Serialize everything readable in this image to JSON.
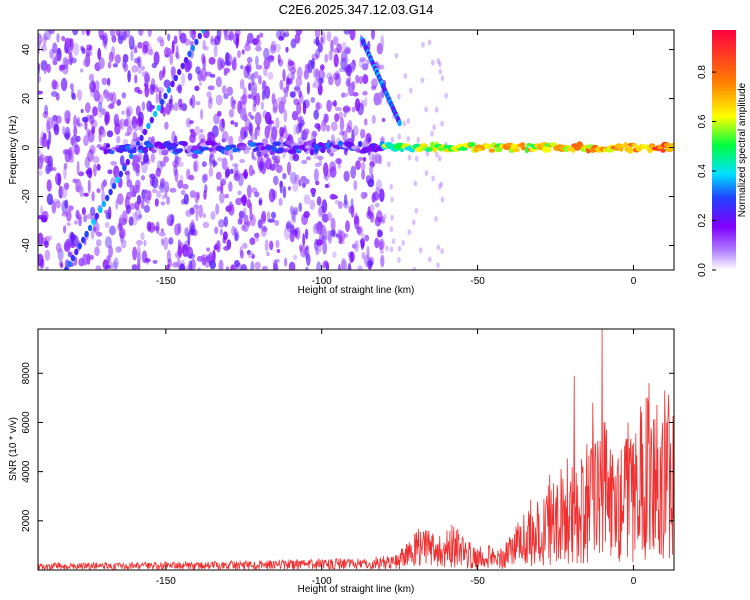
{
  "chart_data": [
    {
      "type": "heatmap",
      "title": "C2E6.2025.347.12.03.G14",
      "xlabel": "Height of straight line (km)",
      "ylabel": "Frequency (Hz)",
      "xlim": [
        -191,
        13
      ],
      "ylim": [
        -50,
        48
      ],
      "x_ticks": [
        -150,
        -100,
        -50,
        0
      ],
      "x_tick_labels": [
        "-150",
        "-100",
        "-50",
        "0"
      ],
      "y_ticks": [
        -40,
        -20,
        0,
        20,
        40
      ],
      "y_tick_labels": [
        "-40",
        "-20",
        "0",
        "20",
        "40"
      ],
      "colorbar": {
        "label": "Normalized spectral amplitude",
        "range": [
          0.0,
          0.97
        ],
        "ticks": [
          0.0,
          0.2,
          0.4,
          0.6,
          0.8
        ],
        "tick_labels": [
          "0.0",
          "0.2",
          "0.4",
          "0.6",
          "0.8"
        ],
        "colors": [
          "#ffffff",
          "#8000ff",
          "#2040ff",
          "#00e0ff",
          "#00ff40",
          "#ffff00",
          "#ff8000",
          "#ff0040"
        ]
      },
      "features": {
        "noise_region_x": [
          -191,
          -80
        ],
        "horizontal_line_freq": 0,
        "horizontal_line_x": [
          -170,
          13
        ],
        "diagonal_lines": [
          {
            "x": [
              -182,
              -138
            ],
            "y": [
              -50,
              48
            ]
          },
          {
            "x": [
              -87,
              -75
            ],
            "y": [
              44,
              10
            ]
          }
        ]
      }
    },
    {
      "type": "line",
      "title": "",
      "xlabel": "Height of straight line (km)",
      "ylabel": "SNR (10 * v/v)",
      "xlim": [
        -191,
        13
      ],
      "ylim": [
        0,
        9800
      ],
      "x_ticks": [
        -150,
        -100,
        -50,
        0
      ],
      "x_tick_labels": [
        "-150",
        "-100",
        "-50",
        "0"
      ],
      "y_ticks": [
        2000,
        4000,
        6000,
        8000
      ],
      "y_tick_labels": [
        "2000",
        "4000",
        "6000",
        "8000"
      ],
      "line_color": "#f03030",
      "envelope": [
        {
          "x": -191,
          "y": 250
        },
        {
          "x": -150,
          "y": 300
        },
        {
          "x": -120,
          "y": 350
        },
        {
          "x": -100,
          "y": 420
        },
        {
          "x": -85,
          "y": 450
        },
        {
          "x": -78,
          "y": 550
        },
        {
          "x": -72,
          "y": 1000
        },
        {
          "x": -68,
          "y": 1600
        },
        {
          "x": -62,
          "y": 1400
        },
        {
          "x": -57,
          "y": 1800
        },
        {
          "x": -52,
          "y": 1000
        },
        {
          "x": -47,
          "y": 900
        },
        {
          "x": -43,
          "y": 700
        },
        {
          "x": -38,
          "y": 1500
        },
        {
          "x": -34,
          "y": 2400
        },
        {
          "x": -30,
          "y": 2800
        },
        {
          "x": -25,
          "y": 3800
        },
        {
          "x": -20,
          "y": 4000
        },
        {
          "x": -16,
          "y": 4400
        },
        {
          "x": -12,
          "y": 5200
        },
        {
          "x": -9,
          "y": 5600
        },
        {
          "x": -6,
          "y": 4700
        },
        {
          "x": -2,
          "y": 5600
        },
        {
          "x": 3,
          "y": 6100
        },
        {
          "x": 8,
          "y": 6300
        },
        {
          "x": 13,
          "y": 6400
        }
      ],
      "spikes": [
        {
          "x": -19,
          "y": 7900
        },
        {
          "x": -10,
          "y": 9800
        },
        {
          "x": -13,
          "y": 6800
        },
        {
          "x": 5,
          "y": 7600
        },
        {
          "x": 10,
          "y": 7300
        }
      ]
    }
  ]
}
